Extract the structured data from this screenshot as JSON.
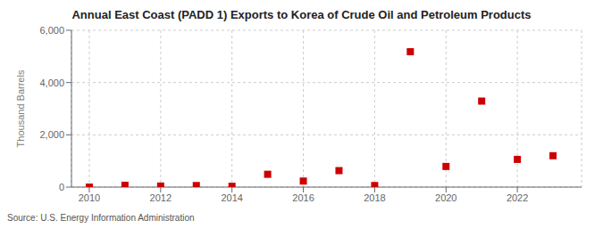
{
  "chart_data": {
    "type": "scatter",
    "title": "Annual East Coast (PADD 1) Exports to Korea of Crude Oil and Petroleum Products",
    "ylabel": "Thousand Barrels",
    "annotations": [
      "Source: U.S. Energy Information Administration"
    ],
    "x": [
      2010,
      2011,
      2012,
      2013,
      2014,
      2015,
      2016,
      2017,
      2018,
      2019,
      2020,
      2021,
      2022,
      2023
    ],
    "values": [
      0,
      70,
      40,
      60,
      30,
      490,
      230,
      630,
      60,
      5180,
      790,
      3290,
      1060,
      1200
    ],
    "color": "#cc0000",
    "marker": "square",
    "xlim": [
      2009.5,
      2023.8
    ],
    "xticks": [
      2010,
      2012,
      2014,
      2016,
      2018,
      2020,
      2022
    ],
    "ylim": [
      0,
      6000
    ],
    "yticks": [
      0,
      {
        "value": 2000,
        "label": "2,000"
      },
      {
        "value": 4000,
        "label": "4,000"
      },
      {
        "value": 6000,
        "label": "6,000"
      }
    ],
    "grid": true
  }
}
